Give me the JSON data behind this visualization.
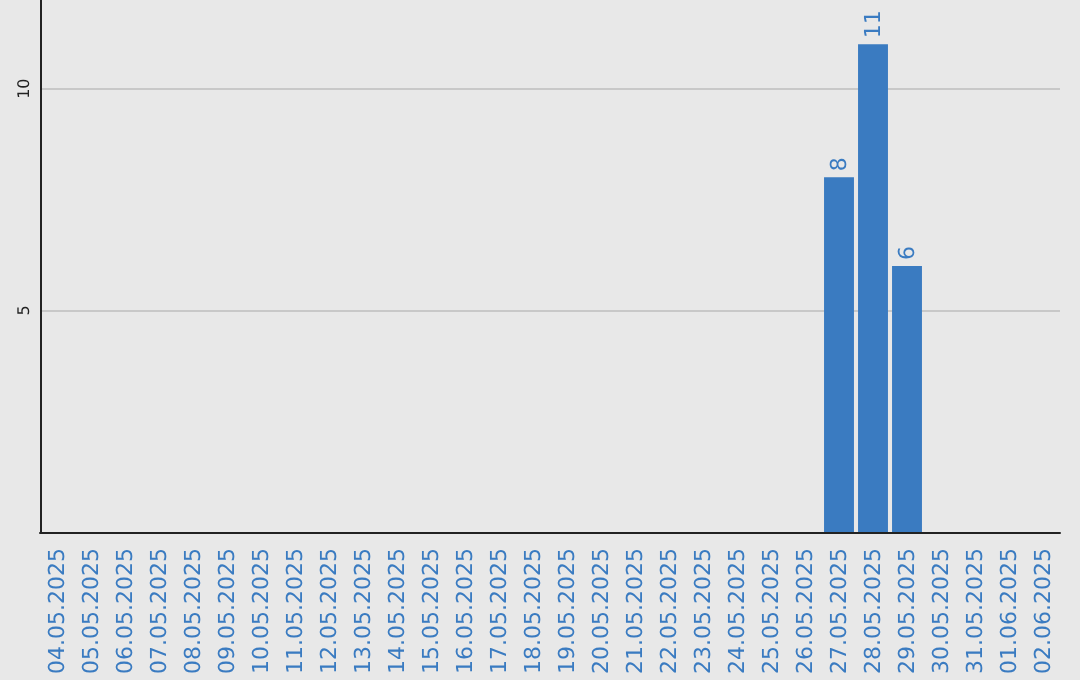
{
  "chart_data": {
    "type": "bar",
    "categories": [
      "04.05.2025",
      "05.05.2025",
      "06.05.2025",
      "07.05.2025",
      "08.05.2025",
      "09.05.2025",
      "10.05.2025",
      "11.05.2025",
      "12.05.2025",
      "13.05.2025",
      "14.05.2025",
      "15.05.2025",
      "16.05.2025",
      "17.05.2025",
      "18.05.2025",
      "19.05.2025",
      "20.05.2025",
      "21.05.2025",
      "22.05.2025",
      "23.05.2025",
      "24.05.2025",
      "25.05.2025",
      "26.05.2025",
      "27.05.2025",
      "28.05.2025",
      "29.05.2025",
      "30.05.2025",
      "31.05.2025",
      "01.06.2025",
      "02.06.2025"
    ],
    "values": [
      0,
      0,
      0,
      0,
      0,
      0,
      0,
      0,
      0,
      0,
      0,
      0,
      0,
      0,
      0,
      0,
      0,
      0,
      0,
      0,
      0,
      0,
      0,
      8,
      11,
      6,
      0,
      0,
      0,
      0
    ],
    "value_labels": [
      null,
      null,
      null,
      null,
      null,
      null,
      null,
      null,
      null,
      null,
      null,
      null,
      null,
      null,
      null,
      null,
      null,
      null,
      null,
      null,
      null,
      null,
      null,
      "8",
      "11",
      "6",
      null,
      null,
      null,
      null
    ],
    "color": "#3a7bc1",
    "ylim": [
      0,
      12
    ],
    "yticks": [
      5,
      10
    ],
    "grid": "y"
  }
}
